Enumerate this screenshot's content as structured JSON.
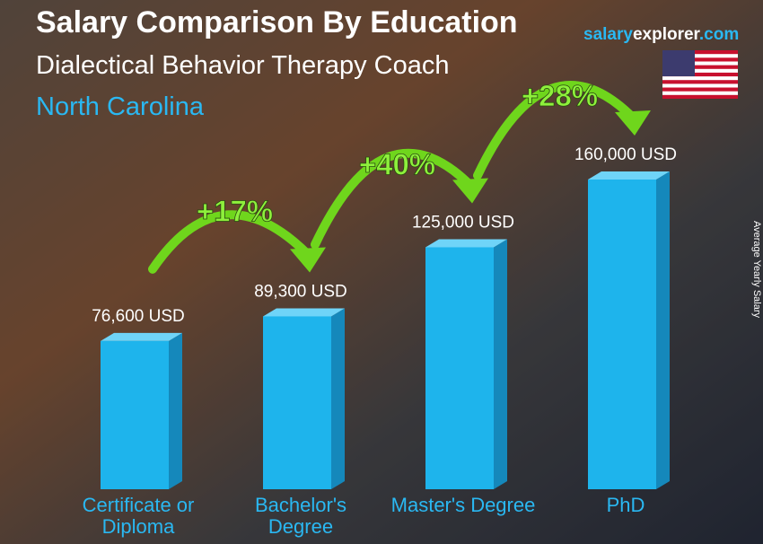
{
  "chart_data": {
    "type": "bar",
    "title": "Salary Comparison By Education",
    "subtitle": "Dialectical Behavior Therapy Coach",
    "location": "North Carolina",
    "site": [
      "salary",
      "explorer",
      ".com"
    ],
    "axis_label": "Average Yearly Salary",
    "categories": [
      "Certificate or Diploma",
      "Bachelor's Degree",
      "Master's Degree",
      "PhD"
    ],
    "values": [
      76600,
      89300,
      125000,
      160000
    ],
    "value_labels": [
      "76,600 USD",
      "89,300 USD",
      "125,000 USD",
      "160,000 USD"
    ],
    "changes": [
      "+17%",
      "+40%",
      "+28%"
    ],
    "color": "#1eb4ec"
  }
}
